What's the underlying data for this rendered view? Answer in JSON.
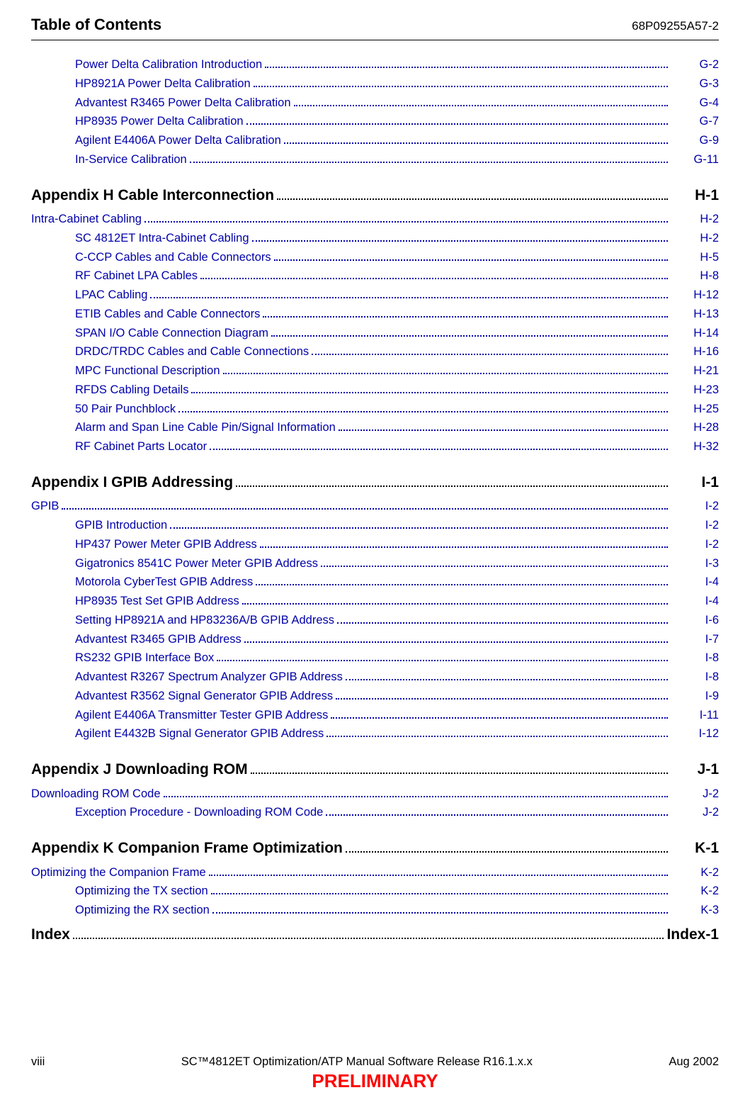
{
  "header": {
    "title": "Table of Contents",
    "code": "68P09255A57-2"
  },
  "intro_items": [
    {
      "label": "Power Delta Calibration Introduction",
      "page": "G-2"
    },
    {
      "label": "HP8921A Power Delta Calibration",
      "page": "G-3"
    },
    {
      "label": "Advantest R3465 Power Delta Calibration",
      "page": "G-4"
    },
    {
      "label": "HP8935 Power Delta Calibration",
      "page": "G-7"
    },
    {
      "label": "Agilent E4406A Power Delta Calibration",
      "page": "G-9"
    },
    {
      "label": "In-Service Calibration",
      "page": "G-11"
    }
  ],
  "appendix_h": {
    "title": "Appendix H Cable Interconnection",
    "page": "H-1",
    "section": {
      "label": "Intra-Cabinet Cabling",
      "page": "H-2"
    },
    "items": [
      {
        "label": "SC 4812ET Intra-Cabinet Cabling",
        "page": "H-2"
      },
      {
        "label": "C-CCP Cables and Cable Connectors",
        "page": "H-5"
      },
      {
        "label": "RF Cabinet LPA Cables",
        "page": "H-8"
      },
      {
        "label": "LPAC Cabling",
        "page": "H-12"
      },
      {
        "label": "ETIB Cables and Cable Connectors",
        "page": "H-13"
      },
      {
        "label": "SPAN I/O Cable Connection Diagram",
        "page": "H-14"
      },
      {
        "label": "DRDC/TRDC Cables and Cable Connections",
        "page": "H-16"
      },
      {
        "label": "MPC Functional Description",
        "page": "H-21"
      },
      {
        "label": "RFDS Cabling Details",
        "page": "H-23"
      },
      {
        "label": "50 Pair Punchblock",
        "page": "H-25"
      },
      {
        "label": "Alarm and Span Line Cable Pin/Signal Information",
        "page": "H-28"
      },
      {
        "label": "RF Cabinet Parts Locator",
        "page": "H-32"
      }
    ]
  },
  "appendix_i": {
    "title": "Appendix I GPIB Addressing",
    "page": "I-1",
    "section": {
      "label": "GPIB",
      "page": "I-2"
    },
    "items": [
      {
        "label": "GPIB Introduction",
        "page": "I-2"
      },
      {
        "label": "HP437 Power Meter GPIB Address",
        "page": "I-2"
      },
      {
        "label": "Gigatronics 8541C Power Meter GPIB Address",
        "page": "I-3"
      },
      {
        "label": "Motorola CyberTest GPIB Address",
        "page": "I-4"
      },
      {
        "label": "HP8935 Test Set GPIB Address",
        "page": "I-4"
      },
      {
        "label": "Setting HP8921A and HP83236A/B GPIB Address",
        "page": "I-6"
      },
      {
        "label": "Advantest R3465 GPIB Address",
        "page": "I-7"
      },
      {
        "label": "RS232 GPIB Interface Box",
        "page": "I-8"
      },
      {
        "label": "Advantest R3267 Spectrum Analyzer GPIB Address",
        "page": "I-8"
      },
      {
        "label": "Advantest R3562 Signal Generator GPIB Address",
        "page": "I-9"
      },
      {
        "label": "Agilent E4406A Transmitter Tester GPIB Address",
        "page": "I-11"
      },
      {
        "label": "Agilent E4432B Signal Generator GPIB Address",
        "page": "I-12"
      }
    ]
  },
  "appendix_j": {
    "title": "Appendix J Downloading ROM",
    "page": "J-1",
    "section": {
      "label": "Downloading ROM Code",
      "page": "J-2"
    },
    "items": [
      {
        "label": "Exception Procedure - Downloading ROM Code",
        "page": "J-2"
      }
    ]
  },
  "appendix_k": {
    "title": "Appendix K Companion Frame Optimization",
    "page": "K-1",
    "section": {
      "label": "Optimizing the Companion Frame",
      "page": "K-2"
    },
    "items": [
      {
        "label": "Optimizing the TX section",
        "page": "K-2"
      },
      {
        "label": "Optimizing the RX section",
        "page": "K-3"
      }
    ]
  },
  "index": {
    "label": "Index",
    "page": "Index-1"
  },
  "footer": {
    "page_num": "viii",
    "center": "SC™4812ET Optimization/ATP Manual Software Release R16.1.x.x",
    "date": "Aug 2002",
    "preliminary": "PRELIMINARY"
  }
}
